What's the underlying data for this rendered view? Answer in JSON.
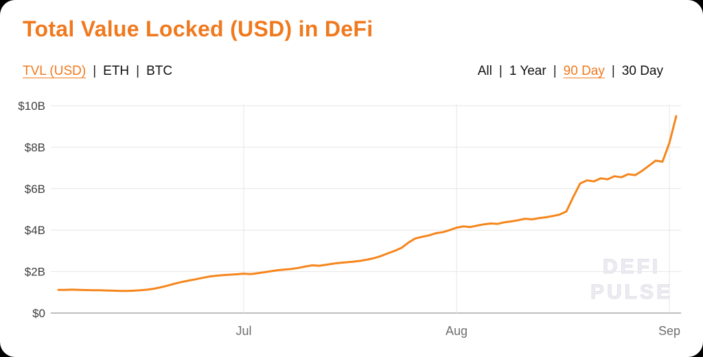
{
  "header": {
    "title": "Total Value Locked (USD) in DeFi"
  },
  "toggles": {
    "separator": "|",
    "metric": {
      "options": [
        {
          "label": "TVL (USD)",
          "selected": true
        },
        {
          "label": "ETH",
          "selected": false
        },
        {
          "label": "BTC",
          "selected": false
        }
      ]
    },
    "range": {
      "options": [
        {
          "label": "All",
          "selected": false
        },
        {
          "label": "1 Year",
          "selected": false
        },
        {
          "label": "90 Day",
          "selected": true
        },
        {
          "label": "30 Day",
          "selected": false
        }
      ]
    }
  },
  "watermark": {
    "line1": "DEFI",
    "line2": "PULSE"
  },
  "colors": {
    "accent": "#F0791E",
    "line": "#F6851B",
    "grid": "#e6e6e6",
    "axis": "#bdbdbd",
    "y_label": "#3d3d3d",
    "x_label": "#6e6e6e"
  },
  "chart_data": {
    "type": "line",
    "title": "Total Value Locked (USD) in DeFi",
    "series_name": "TVL (USD)",
    "range": "90 Day",
    "unit": "USD billions",
    "ylim": [
      0,
      10
    ],
    "grid": true,
    "legend": false,
    "y_ticks": [
      {
        "value": 0,
        "label": "$0"
      },
      {
        "value": 2,
        "label": "$2B"
      },
      {
        "value": 4,
        "label": "$4B"
      },
      {
        "value": 6,
        "label": "$6B"
      },
      {
        "value": 8,
        "label": "$8B"
      },
      {
        "value": 10,
        "label": "$10B"
      }
    ],
    "x_ticks": [
      {
        "index": 27,
        "label": "Jul"
      },
      {
        "index": 58,
        "label": "Aug"
      },
      {
        "index": 89,
        "label": "Sep"
      }
    ],
    "values": [
      1.12,
      1.12,
      1.13,
      1.12,
      1.11,
      1.1,
      1.1,
      1.09,
      1.08,
      1.07,
      1.07,
      1.08,
      1.1,
      1.13,
      1.18,
      1.25,
      1.33,
      1.42,
      1.5,
      1.57,
      1.63,
      1.7,
      1.76,
      1.8,
      1.83,
      1.85,
      1.87,
      1.9,
      1.88,
      1.92,
      1.97,
      2.02,
      2.07,
      2.1,
      2.13,
      2.18,
      2.25,
      2.3,
      2.28,
      2.33,
      2.38,
      2.42,
      2.45,
      2.48,
      2.52,
      2.58,
      2.65,
      2.75,
      2.88,
      3.0,
      3.15,
      3.4,
      3.6,
      3.68,
      3.75,
      3.85,
      3.9,
      4.0,
      4.12,
      4.18,
      4.15,
      4.22,
      4.28,
      4.32,
      4.3,
      4.38,
      4.42,
      4.48,
      4.55,
      4.52,
      4.58,
      4.62,
      4.68,
      4.75,
      4.9,
      5.6,
      6.25,
      6.4,
      6.35,
      6.5,
      6.45,
      6.6,
      6.55,
      6.7,
      6.65,
      6.85,
      7.1,
      7.35,
      7.3,
      8.2,
      9.5
    ]
  }
}
